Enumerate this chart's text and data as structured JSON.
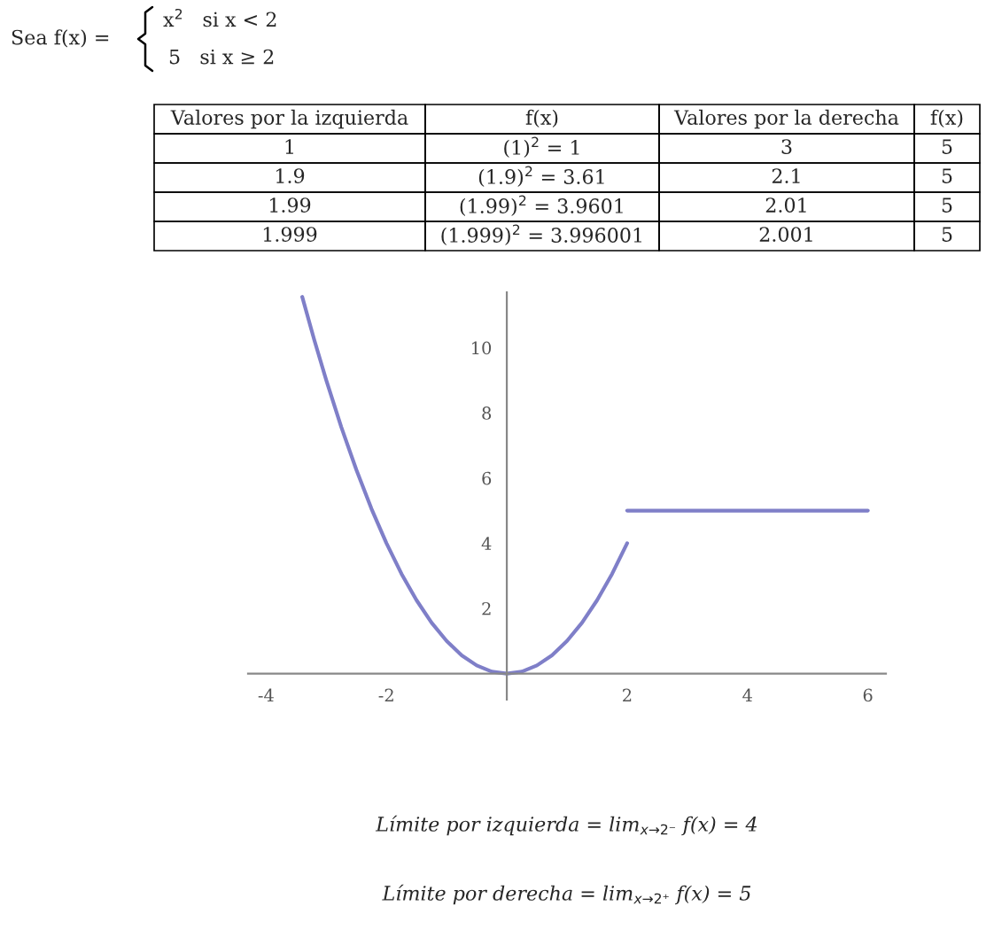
{
  "chart_data": {
    "type": "line",
    "series": [
      {
        "color": "#7f7fc8",
        "x": [
          -3.4,
          -3.2,
          -3,
          -2.75,
          -2.5,
          -2.25,
          -2,
          -1.75,
          -1.5,
          -1.25,
          -1,
          -0.75,
          -0.5,
          -0.25,
          0,
          0.25,
          0.5,
          0.75,
          1,
          1.25,
          1.5,
          1.75,
          2
        ],
        "values": [
          11.56,
          10.24,
          9,
          7.56,
          6.25,
          5.06,
          4,
          3.06,
          2.25,
          1.56,
          1,
          0.56,
          0.25,
          0.06,
          0,
          0.06,
          0.25,
          0.56,
          1,
          1.56,
          2.25,
          3.06,
          4
        ]
      },
      {
        "color": "#7f7fc8",
        "x": [
          2,
          6
        ],
        "values": [
          5,
          5
        ]
      }
    ],
    "xlim": [
      -4.3,
      6.3
    ],
    "ylim": [
      -0.8,
      11.7
    ],
    "xticks": [
      -4,
      -2,
      2,
      4,
      6
    ],
    "yticks": [
      2,
      4,
      6,
      8,
      10
    ],
    "grid": false,
    "legend": false,
    "annotations": [
      "Sea f(x) =",
      "x$^{2}$   si x < 2",
      "5   si x ≥ 2",
      "Valores por la izquierda",
      "f(x)",
      "Valores por la derecha",
      "f(x)",
      "1",
      "(1)$^{2}$ = 1",
      "3",
      "5",
      "1.9",
      "(1.9)$^{2}$ = 3.61",
      "2.1",
      "5",
      "1.99",
      "(1.99)$^{2}$ = 3.9601",
      "2.01",
      "5",
      "1.999",
      "(1.999)$^{2}$ = 3.996001",
      "2.001",
      "5",
      "Límite por izquierda = lim$_{x→2⁻}$ f(x) = 4",
      "Límite por derecha = lim$_{x→2⁺}$ f(x) = 5"
    ]
  }
}
